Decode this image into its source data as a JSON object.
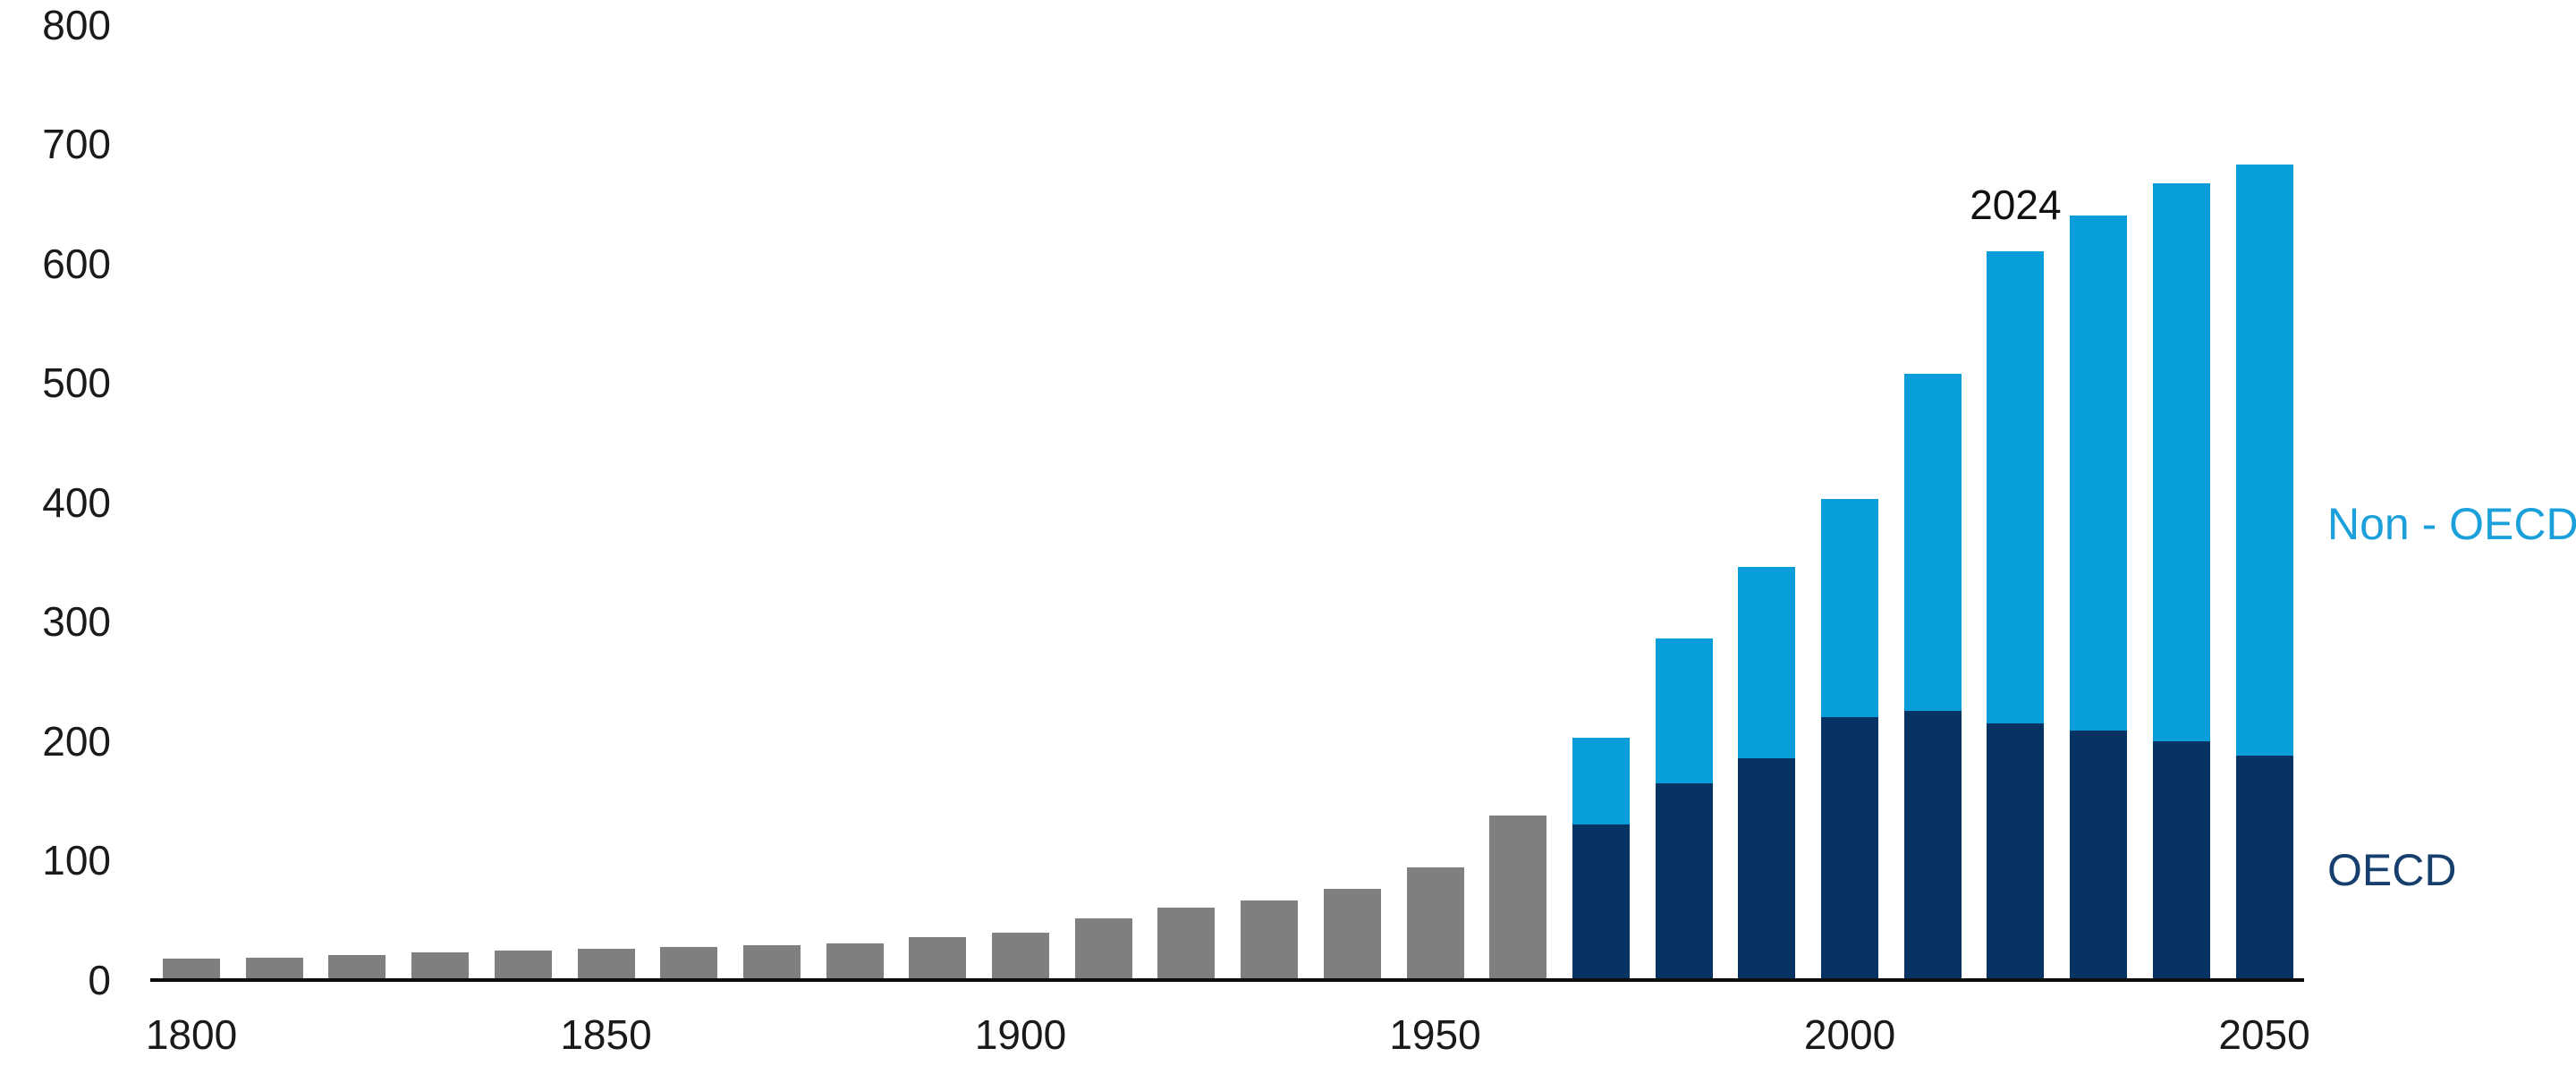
{
  "chart_data": {
    "type": "bar",
    "stacked": true,
    "title": "",
    "categories": [
      "1800",
      "1810",
      "1820",
      "1830",
      "1840",
      "1850",
      "1860",
      "1870",
      "1880",
      "1890",
      "1900",
      "1910",
      "1920",
      "1930",
      "1940",
      "1950",
      "1960",
      "1970",
      "1980",
      "1990",
      "2000",
      "2010",
      "2024",
      "2030",
      "2040",
      "2050"
    ],
    "series": [
      {
        "id": "gray",
        "name": "",
        "color": "#7f7f7f",
        "values": [
          18,
          19,
          21,
          23,
          25,
          26,
          28,
          29,
          31,
          36,
          40,
          52,
          61,
          67,
          76,
          94,
          138,
          0,
          0,
          0,
          0,
          0,
          0,
          0,
          0,
          0
        ]
      },
      {
        "id": "oecd",
        "name": "OECD",
        "color": "#063264",
        "values": [
          0,
          0,
          0,
          0,
          0,
          0,
          0,
          0,
          0,
          0,
          0,
          0,
          0,
          0,
          0,
          0,
          0,
          130,
          165,
          186,
          220,
          225,
          215,
          209,
          200,
          188
        ]
      },
      {
        "id": "non_oecd",
        "name": "Non - OECD",
        "color": "#089edb",
        "values": [
          0,
          0,
          0,
          0,
          0,
          0,
          0,
          0,
          0,
          0,
          0,
          0,
          0,
          0,
          0,
          0,
          0,
          73,
          121,
          160,
          183,
          283,
          395,
          431,
          467,
          495
        ]
      }
    ],
    "ylim": [
      0,
      800
    ],
    "y_ticks": [
      0,
      100,
      200,
      300,
      400,
      500,
      600,
      700,
      800
    ],
    "x_ticks": [
      {
        "label": "1800",
        "bar_index": 0
      },
      {
        "label": "1850",
        "bar_index": 5
      },
      {
        "label": "1900",
        "bar_index": 10
      },
      {
        "label": "1950",
        "bar_index": 15
      },
      {
        "label": "2000",
        "bar_index": 20
      },
      {
        "label": "2050",
        "bar_index": 25
      }
    ],
    "annotation": {
      "text": "2024",
      "bar_index": 22
    },
    "legend": [
      {
        "id": "non_oecd",
        "label": "Non - OECD",
        "text_color": "#1ca0db"
      },
      {
        "id": "oecd",
        "label": "OECD",
        "text_color": "#173f6e"
      }
    ],
    "legend_position": "right-outside",
    "grid": false,
    "background": "#ffffff",
    "axis_text_color": "#1a1a1a"
  }
}
